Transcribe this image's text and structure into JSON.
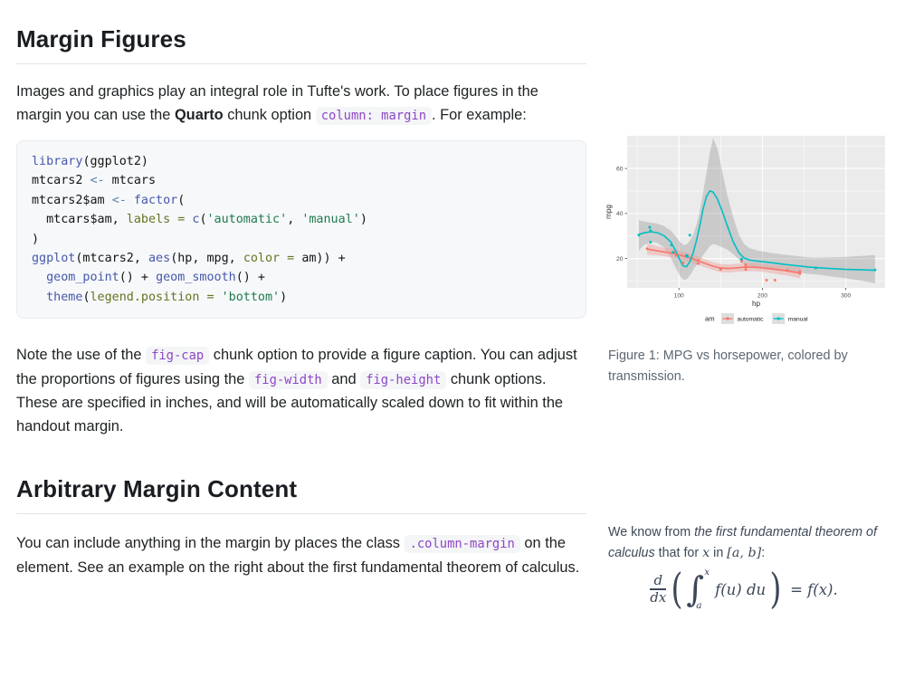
{
  "header": {
    "title": "Margin Figures"
  },
  "section2": {
    "title": "Arbitrary Margin Content"
  },
  "paragraphs": {
    "p1": [
      {
        "t": "Images and graphics play an integral role in Tufte's work. To place figures in the margin you can use the "
      },
      {
        "t": "Quarto",
        "s": "b"
      },
      {
        "t": " chunk option "
      },
      {
        "t": "column: margin",
        "s": "c"
      },
      {
        "t": ". For example:"
      }
    ],
    "p2": [
      {
        "t": "Note the use of the "
      },
      {
        "t": "fig-cap",
        "s": "c"
      },
      {
        "t": " chunk option to provide a figure caption. You can adjust the proportions of figures using the "
      },
      {
        "t": "fig-width",
        "s": "c"
      },
      {
        "t": " and "
      },
      {
        "t": "fig-height",
        "s": "c"
      },
      {
        "t": " chunk options. These are specified in inches, and will be automatically scaled down to fit within the handout margin."
      }
    ],
    "p3": [
      {
        "t": "You can include anything in the margin by places the class "
      },
      {
        "t": ".column-margin",
        "s": "c"
      },
      {
        "t": " on the element. See an example on the right about the first fundamental theorem of calculus."
      }
    ]
  },
  "code_block": {
    "lines": [
      [
        {
          "t": "library",
          "c": "fn"
        },
        {
          "t": "(ggplot2)",
          "c": "pl"
        }
      ],
      [
        {
          "t": "mtcars2 ",
          "c": "pl"
        },
        {
          "t": "<-",
          "c": "op"
        },
        {
          "t": " mtcars",
          "c": "pl"
        }
      ],
      [
        {
          "t": "mtcars2$am ",
          "c": "pl"
        },
        {
          "t": "<-",
          "c": "op"
        },
        {
          "t": " ",
          "c": "pl"
        },
        {
          "t": "factor",
          "c": "fn"
        },
        {
          "t": "(",
          "c": "pl"
        }
      ],
      [
        {
          "t": "  mtcars$am, ",
          "c": "pl"
        },
        {
          "t": "labels = ",
          "c": "arg"
        },
        {
          "t": "c",
          "c": "fn"
        },
        {
          "t": "(",
          "c": "pl"
        },
        {
          "t": "'automatic'",
          "c": "str"
        },
        {
          "t": ", ",
          "c": "pl"
        },
        {
          "t": "'manual'",
          "c": "str"
        },
        {
          "t": ")",
          "c": "pl"
        }
      ],
      [
        {
          "t": ")",
          "c": "pl"
        }
      ],
      [
        {
          "t": "ggplot",
          "c": "fn"
        },
        {
          "t": "(mtcars2, ",
          "c": "pl"
        },
        {
          "t": "aes",
          "c": "fn"
        },
        {
          "t": "(hp, mpg, ",
          "c": "pl"
        },
        {
          "t": "color = ",
          "c": "arg"
        },
        {
          "t": "am)) +",
          "c": "pl"
        }
      ],
      [
        {
          "t": "  ",
          "c": "pl"
        },
        {
          "t": "geom_point",
          "c": "fn"
        },
        {
          "t": "() + ",
          "c": "pl"
        },
        {
          "t": "geom_smooth",
          "c": "fn"
        },
        {
          "t": "() +",
          "c": "pl"
        }
      ],
      [
        {
          "t": "  ",
          "c": "pl"
        },
        {
          "t": "theme",
          "c": "fn"
        },
        {
          "t": "(",
          "c": "pl"
        },
        {
          "t": "legend.position = ",
          "c": "arg"
        },
        {
          "t": "'bottom'",
          "c": "str"
        },
        {
          "t": ")",
          "c": "pl"
        }
      ]
    ],
    "token_colors": {
      "pl": "#141414",
      "fn": "#4758ab",
      "op": "#5e81ac",
      "arg": "#657422",
      "str": "#20794d"
    }
  },
  "figure": {
    "caption": "Figure 1: MPG vs horsepower, colored by transmission."
  },
  "margin_note": {
    "segments": [
      {
        "t": "We know from "
      },
      {
        "t": "the first fundamental theorem of calculus",
        "s": "i"
      },
      {
        "t": " that for "
      },
      {
        "t": "x",
        "s": "m"
      },
      {
        "t": " in "
      },
      {
        "t": "[a, b]",
        "s": "m"
      },
      {
        "t": ":"
      }
    ]
  },
  "formula": {
    "d": "d",
    "dx": "dx",
    "lparen": "(",
    "rparen": ")",
    "integral": "∫",
    "upper": "x",
    "lower": "a",
    "integrand": "f(u) du",
    "rhs": "= f(x)."
  },
  "colors": {
    "inline_code": "#8d47c5",
    "heading_rule": "#dfe3e7",
    "automatic": "#F8766D",
    "manual": "#00BFC4"
  },
  "chart_data": {
    "type": "scatter",
    "xlabel": "hp",
    "ylabel": "mpg",
    "x_ticks": [
      100,
      200,
      300
    ],
    "y_ticks": [
      20,
      40,
      60
    ],
    "x_minor": [
      50,
      150,
      250
    ],
    "y_minor": [
      10,
      30,
      50,
      70
    ],
    "xlim": [
      38,
      347
    ],
    "ylim": [
      7,
      74.5
    ],
    "panel_bg": "#ebebeb",
    "grid_color": "#ffffff",
    "legend": {
      "title": "am",
      "position": "bottom",
      "key_bg": "#dedede",
      "entries": [
        {
          "label": "automatic",
          "color": "#F8766D"
        },
        {
          "label": "manual",
          "color": "#00BFC4"
        }
      ]
    },
    "series": [
      {
        "name": "automatic",
        "color": "#F8766D",
        "band_fill": "rgba(235,160,152,0.45)",
        "points": [
          [
            110,
            21.4
          ],
          [
            175,
            18.7
          ],
          [
            105,
            18.1
          ],
          [
            245,
            14.3
          ],
          [
            62,
            24.4
          ],
          [
            95,
            22.8
          ],
          [
            123,
            19.2
          ],
          [
            123,
            17.8
          ],
          [
            180,
            16.4
          ],
          [
            180,
            17.3
          ],
          [
            180,
            15.2
          ],
          [
            205,
            10.4
          ],
          [
            215,
            10.4
          ],
          [
            230,
            14.7
          ],
          [
            97,
            21.5
          ],
          [
            150,
            15.5
          ],
          [
            150,
            15.2
          ],
          [
            245,
            13.3
          ],
          [
            175,
            19.2
          ]
        ],
        "smooth": [
          [
            62,
            24.2
          ],
          [
            75,
            23.4
          ],
          [
            85,
            22.8
          ],
          [
            95,
            22.1
          ],
          [
            105,
            21.2
          ],
          [
            115,
            20.1
          ],
          [
            123,
            19.0
          ],
          [
            132,
            17.8
          ],
          [
            140,
            16.7
          ],
          [
            150,
            15.8
          ],
          [
            160,
            15.6
          ],
          [
            170,
            15.9
          ],
          [
            180,
            16.2
          ],
          [
            190,
            16.2
          ],
          [
            200,
            15.9
          ],
          [
            210,
            15.5
          ],
          [
            220,
            15.0
          ],
          [
            230,
            14.5
          ],
          [
            238,
            14.0
          ],
          [
            245,
            13.6
          ]
        ],
        "band": [
          [
            62,
            21.8,
            26.8
          ],
          [
            75,
            21.4,
            25.4
          ],
          [
            85,
            20.9,
            24.6
          ],
          [
            95,
            20.2,
            24.0
          ],
          [
            105,
            19.2,
            23.2
          ],
          [
            115,
            18.2,
            22.0
          ],
          [
            123,
            17.2,
            20.9
          ],
          [
            132,
            16.0,
            19.6
          ],
          [
            140,
            15.0,
            18.5
          ],
          [
            150,
            14.0,
            17.6
          ],
          [
            160,
            13.8,
            17.4
          ],
          [
            170,
            14.1,
            17.7
          ],
          [
            180,
            14.4,
            18.0
          ],
          [
            190,
            14.4,
            18.0
          ],
          [
            200,
            14.1,
            17.7
          ],
          [
            210,
            13.6,
            17.3
          ],
          [
            220,
            13.0,
            16.9
          ],
          [
            230,
            12.4,
            16.6
          ],
          [
            238,
            11.8,
            16.3
          ],
          [
            245,
            11.2,
            16.1
          ]
        ]
      },
      {
        "name": "manual",
        "color": "#00BFC4",
        "band_fill": "rgba(125,125,125,0.30)",
        "points": [
          [
            110,
            21.0
          ],
          [
            110,
            21.0
          ],
          [
            93,
            22.8
          ],
          [
            66,
            32.4
          ],
          [
            52,
            30.4
          ],
          [
            65,
            33.9
          ],
          [
            66,
            27.3
          ],
          [
            91,
            26.0
          ],
          [
            113,
            30.4
          ],
          [
            264,
            15.8
          ],
          [
            175,
            19.7
          ],
          [
            335,
            15.0
          ],
          [
            109,
            21.4
          ]
        ],
        "smooth": [
          [
            52,
            30.7
          ],
          [
            58,
            31.4
          ],
          [
            66,
            31.9
          ],
          [
            74,
            31.5
          ],
          [
            82,
            30.2
          ],
          [
            90,
            27.5
          ],
          [
            96,
            23.5
          ],
          [
            101,
            19.5
          ],
          [
            105,
            16.8
          ],
          [
            109,
            16.4
          ],
          [
            113,
            18.5
          ],
          [
            117,
            22.5
          ],
          [
            121,
            28.0
          ],
          [
            125,
            34.5
          ],
          [
            129,
            42.0
          ],
          [
            133,
            47.5
          ],
          [
            137,
            50.0
          ],
          [
            141,
            49.5
          ],
          [
            146,
            46.5
          ],
          [
            152,
            41.0
          ],
          [
            158,
            34.5
          ],
          [
            165,
            27.5
          ],
          [
            172,
            22.5
          ],
          [
            178,
            20.3
          ],
          [
            185,
            19.3
          ],
          [
            195,
            18.8
          ],
          [
            210,
            18.2
          ],
          [
            225,
            17.5
          ],
          [
            240,
            16.9
          ],
          [
            255,
            16.3
          ],
          [
            264,
            16.0
          ],
          [
            280,
            15.6
          ],
          [
            300,
            15.2
          ],
          [
            318,
            15.0
          ],
          [
            335,
            14.8
          ]
        ],
        "band": [
          [
            52,
            23.5,
            37.0
          ],
          [
            58,
            26.0,
            36.5
          ],
          [
            66,
            27.5,
            36.0
          ],
          [
            74,
            27.0,
            35.5
          ],
          [
            82,
            25.0,
            34.5
          ],
          [
            90,
            20.5,
            32.5
          ],
          [
            96,
            16.0,
            30.0
          ],
          [
            101,
            12.5,
            27.5
          ],
          [
            106,
            10.5,
            26.0
          ],
          [
            110,
            11.0,
            26.5
          ],
          [
            114,
            13.0,
            28.5
          ],
          [
            118,
            15.5,
            31.5
          ],
          [
            123,
            18.0,
            37.5
          ],
          [
            128,
            21.0,
            47.0
          ],
          [
            133,
            23.5,
            58.0
          ],
          [
            137,
            25.5,
            67.0
          ],
          [
            141,
            26.5,
            73.5
          ],
          [
            146,
            26.0,
            69.0
          ],
          [
            152,
            25.0,
            58.5
          ],
          [
            158,
            24.0,
            48.0
          ],
          [
            165,
            22.0,
            38.5
          ],
          [
            172,
            19.5,
            30.5
          ],
          [
            178,
            17.5,
            26.5
          ],
          [
            185,
            16.5,
            24.5
          ],
          [
            195,
            15.5,
            23.5
          ],
          [
            210,
            15.0,
            22.5
          ],
          [
            225,
            14.5,
            21.8
          ],
          [
            240,
            14.0,
            21.2
          ],
          [
            255,
            13.2,
            20.6
          ],
          [
            264,
            13.0,
            20.4
          ],
          [
            280,
            12.2,
            20.5
          ],
          [
            300,
            11.2,
            20.8
          ],
          [
            318,
            10.2,
            21.2
          ],
          [
            335,
            9.0,
            21.6
          ]
        ]
      }
    ]
  }
}
